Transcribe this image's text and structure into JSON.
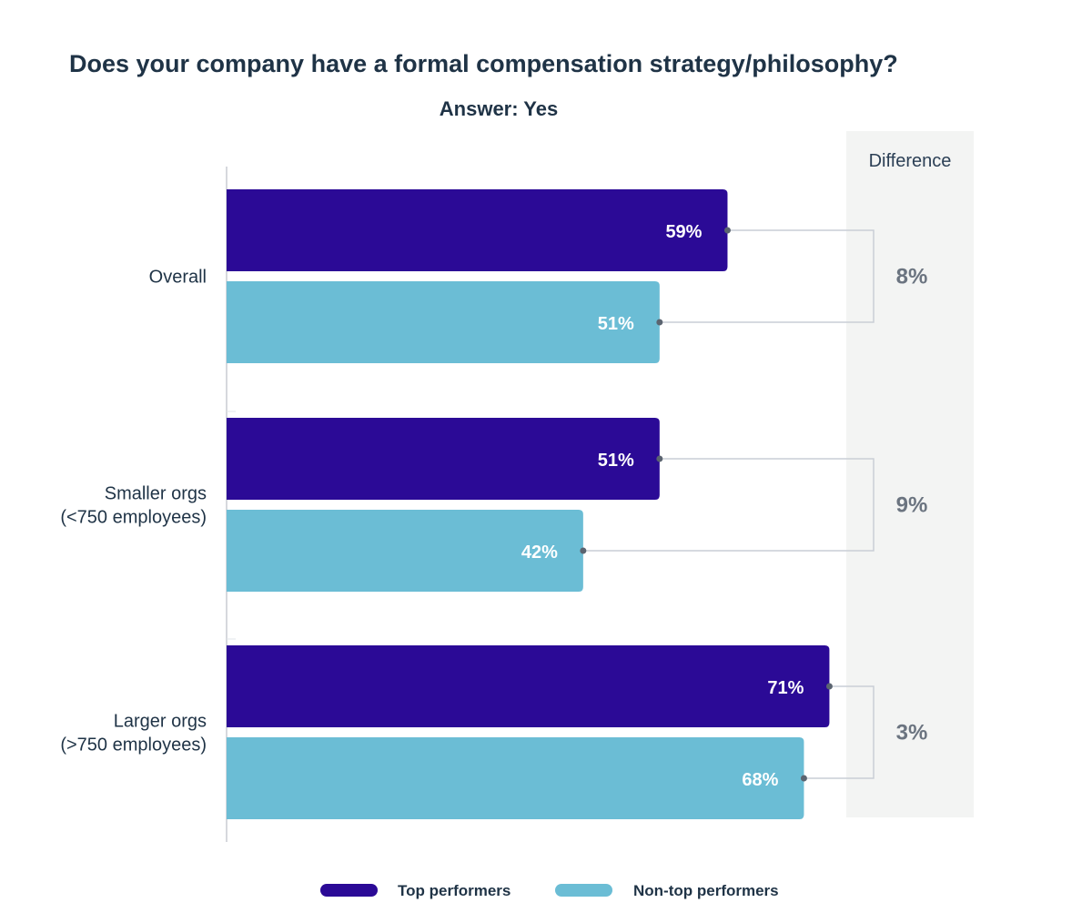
{
  "chart_data": {
    "type": "bar",
    "orientation": "horizontal",
    "title": "Does your company have a formal compensation strategy/philosophy?",
    "subtitle": "Answer: Yes",
    "categories": [
      [
        "Overall"
      ],
      [
        "Smaller orgs",
        "(<750 employees)"
      ],
      [
        "Larger orgs",
        "(>750 employees)"
      ]
    ],
    "series": [
      {
        "name": "Top performers",
        "color": "#2b0a96",
        "values": [
          59,
          51,
          71
        ],
        "labels": [
          "59%",
          "51%",
          "71%"
        ]
      },
      {
        "name": "Non-top performers",
        "color": "#6bbdd5",
        "values": [
          51,
          42,
          68
        ],
        "labels": [
          "51%",
          "42%",
          "68%"
        ]
      }
    ],
    "difference": {
      "header": "Difference",
      "values": [
        "8%",
        "9%",
        "3%"
      ]
    },
    "xlim": [
      0,
      100
    ],
    "legend_position": "bottom-center",
    "colors": {
      "panel": "#f3f4f3",
      "connector": "#c9ced6",
      "dot": "#5b6470",
      "axis": "#c8ccd2"
    }
  }
}
